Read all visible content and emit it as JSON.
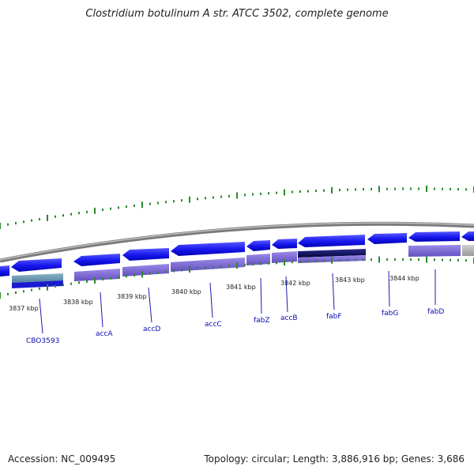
{
  "header": {
    "title": "Clostridium botulinum A str. ATCC 3502, complete genome"
  },
  "footer": {
    "accession": "Accession: NC_009495",
    "summary": "Topology: circular; Length: 3,886,916 bp; Genes: 3,686"
  },
  "ruler": {
    "labels": [
      "3837 kbp",
      "3838 kbp",
      "3839 kbp",
      "3840 kbp",
      "3841 kbp",
      "3842 kbp",
      "3843 kbp",
      "3844 kbp"
    ]
  },
  "genes": {
    "labels": [
      "CBO3593",
      "accA",
      "accD",
      "accC",
      "fabZ",
      "accB",
      "fabF",
      "fabG",
      "fabD"
    ]
  },
  "colors": {
    "backbone": "#808080",
    "gene_forward": "#1414e6",
    "gene_highlight": "#0a0a60",
    "feature_band": "#7b68d0",
    "feature_band_grey": "#b0b0b0",
    "tick_green": "#2a8a2a",
    "label_blue": "#0a0ab0"
  }
}
